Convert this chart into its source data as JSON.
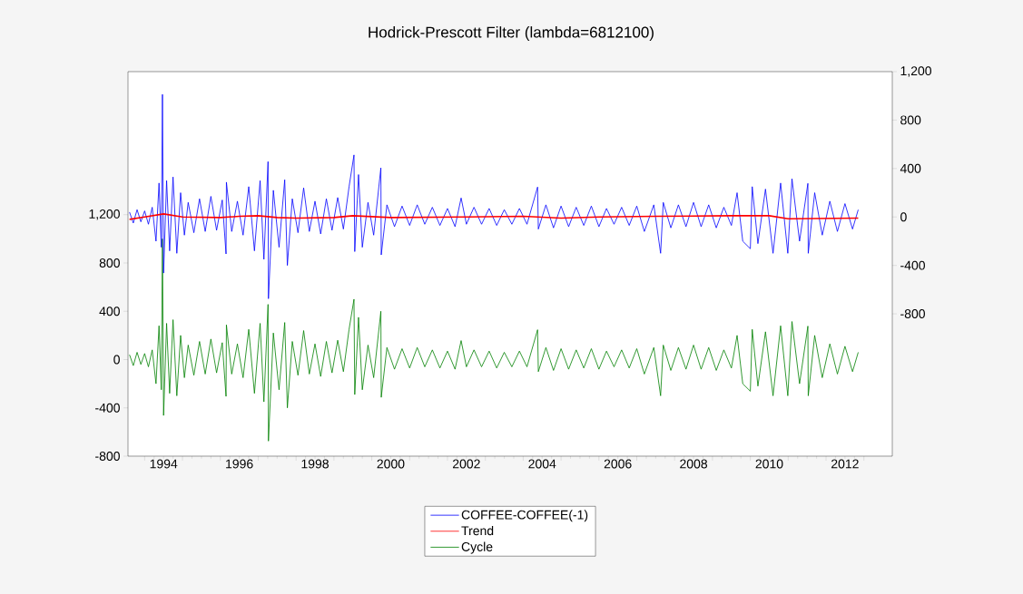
{
  "chart_data": {
    "type": "line",
    "title": "Hodrick-Prescott Filter (lambda=6812100)",
    "x": [
      1993.6,
      1993.7,
      1993.8,
      1993.9,
      1994.0,
      1994.1,
      1994.2,
      1994.3,
      1994.38,
      1994.44,
      1994.47,
      1994.5,
      1994.58,
      1994.66,
      1994.75,
      1994.85,
      1994.95,
      1995.05,
      1995.15,
      1995.3,
      1995.45,
      1995.6,
      1995.75,
      1995.9,
      1996.05,
      1996.15,
      1996.16,
      1996.3,
      1996.45,
      1996.6,
      1996.75,
      1996.9,
      1997.05,
      1997.15,
      1997.26,
      1997.27,
      1997.4,
      1997.55,
      1997.7,
      1997.77,
      1997.9,
      1998.05,
      1998.2,
      1998.35,
      1998.5,
      1998.65,
      1998.8,
      1998.95,
      1999.1,
      1999.25,
      1999.4,
      1999.53,
      1999.55,
      1999.65,
      1999.75,
      1999.9,
      2000.05,
      2000.24,
      2000.25,
      2000.4,
      2000.6,
      2000.8,
      2001.0,
      2001.2,
      2001.4,
      2001.6,
      2001.8,
      2002.0,
      2002.2,
      2002.36,
      2002.5,
      2002.7,
      2002.9,
      2003.1,
      2003.3,
      2003.5,
      2003.7,
      2003.9,
      2004.1,
      2004.38,
      2004.4,
      2004.6,
      2004.8,
      2005.0,
      2005.2,
      2005.4,
      2005.6,
      2005.8,
      2006.0,
      2006.2,
      2006.4,
      2006.6,
      2006.8,
      2007.0,
      2007.2,
      2007.45,
      2007.63,
      2007.7,
      2007.9,
      2008.1,
      2008.3,
      2008.5,
      2008.7,
      2008.9,
      2009.1,
      2009.3,
      2009.5,
      2009.65,
      2009.8,
      2010.0,
      2010.05,
      2010.2,
      2010.4,
      2010.6,
      2010.8,
      2010.99,
      2011.1,
      2011.3,
      2011.52,
      2011.53,
      2011.7,
      2011.9,
      2012.1,
      2012.3,
      2012.5,
      2012.7,
      2012.85
    ],
    "series": [
      {
        "name": "COFFEE-COFFEE(-1)",
        "color": "#0000ff",
        "axis": "y2",
        "values": [
          40,
          -50,
          60,
          -40,
          50,
          -60,
          80,
          -200,
          280,
          -250,
          1012,
          -463,
          300,
          -280,
          330,
          -300,
          200,
          -150,
          120,
          -130,
          150,
          -120,
          170,
          -110,
          140,
          -305,
          287,
          -120,
          130,
          -150,
          250,
          -280,
          300,
          -350,
          457,
          -675,
          220,
          -250,
          307,
          -400,
          150,
          -130,
          240,
          -120,
          130,
          -140,
          150,
          -110,
          160,
          -100,
          250,
          512,
          -286,
          350,
          -250,
          120,
          -150,
          405,
          -313,
          100,
          -80,
          90,
          -70,
          100,
          -60,
          80,
          -70,
          70,
          -80,
          157,
          -60,
          80,
          -60,
          70,
          -70,
          60,
          -60,
          70,
          -60,
          247,
          -100,
          100,
          -90,
          90,
          -80,
          80,
          -70,
          90,
          -80,
          70,
          -60,
          80,
          -70,
          90,
          -120,
          100,
          -300,
          120,
          -90,
          100,
          -80,
          120,
          -80,
          100,
          -90,
          80,
          -70,
          200,
          -200,
          -262,
          250,
          -220,
          230,
          -300,
          280,
          -300,
          315,
          -200,
          277,
          -300,
          200,
          -150,
          130,
          -120,
          110,
          -100,
          60
        ]
      },
      {
        "name": "Trend",
        "color": "#ff0000",
        "axis": "y2",
        "x": [
          1993.6,
          1994.0,
          1994.5,
          1995.0,
          1996.0,
          1996.5,
          1997.0,
          1997.5,
          1998.0,
          1999.0,
          1999.5,
          2000.5,
          2002.5,
          2004.0,
          2005.0,
          2006.0,
          2007.5,
          2009.5,
          2010.5,
          2011.0,
          2012.85
        ],
        "values": [
          -20,
          0,
          25,
          0,
          -5,
          5,
          10,
          -5,
          -10,
          -5,
          10,
          -5,
          0,
          5,
          -10,
          0,
          5,
          10,
          10,
          -15,
          -10
        ]
      },
      {
        "name": "Cycle",
        "color": "#008000",
        "axis": "y",
        "values": [
          40,
          -50,
          60,
          -40,
          50,
          -60,
          80,
          -200,
          280,
          -250,
          1000,
          -463,
          300,
          -280,
          330,
          -300,
          200,
          -150,
          120,
          -130,
          150,
          -120,
          170,
          -110,
          140,
          -305,
          287,
          -120,
          130,
          -150,
          250,
          -280,
          300,
          -350,
          457,
          -675,
          220,
          -250,
          307,
          -400,
          150,
          -130,
          240,
          -120,
          130,
          -140,
          150,
          -110,
          160,
          -100,
          250,
          500,
          -290,
          350,
          -250,
          120,
          -150,
          400,
          -313,
          100,
          -80,
          90,
          -70,
          100,
          -60,
          80,
          -70,
          70,
          -80,
          157,
          -60,
          80,
          -60,
          70,
          -70,
          60,
          -60,
          70,
          -60,
          247,
          -100,
          100,
          -90,
          90,
          -80,
          80,
          -70,
          90,
          -80,
          70,
          -60,
          80,
          -70,
          90,
          -120,
          100,
          -300,
          120,
          -90,
          100,
          -80,
          120,
          -80,
          100,
          -90,
          80,
          -70,
          200,
          -200,
          -262,
          250,
          -220,
          230,
          -300,
          280,
          -300,
          315,
          -200,
          277,
          -300,
          200,
          -150,
          130,
          -120,
          110,
          -100,
          60
        ]
      }
    ],
    "xlim": [
      1993.56,
      2013.75
    ],
    "xticks": [
      {
        "value": 1994,
        "label": null
      },
      {
        "value": 1994.5,
        "label": "1994"
      },
      {
        "value": 1995,
        "label": null
      },
      {
        "value": 1996,
        "label": null
      },
      {
        "value": 1996.5,
        "label": "1996"
      },
      {
        "value": 1997,
        "label": null
      },
      {
        "value": 1998,
        "label": null
      },
      {
        "value": 1998.5,
        "label": "1998"
      },
      {
        "value": 1999,
        "label": null
      },
      {
        "value": 2000,
        "label": null
      },
      {
        "value": 2000.5,
        "label": "2000"
      },
      {
        "value": 2001,
        "label": null
      },
      {
        "value": 2002,
        "label": null
      },
      {
        "value": 2002.5,
        "label": "2002"
      },
      {
        "value": 2003,
        "label": null
      },
      {
        "value": 2004,
        "label": null
      },
      {
        "value": 2004.5,
        "label": "2004"
      },
      {
        "value": 2005,
        "label": null
      },
      {
        "value": 2006,
        "label": null
      },
      {
        "value": 2006.5,
        "label": "2006"
      },
      {
        "value": 2007,
        "label": null
      },
      {
        "value": 2008,
        "label": null
      },
      {
        "value": 2008.5,
        "label": "2008"
      },
      {
        "value": 2009,
        "label": null
      },
      {
        "value": 2010,
        "label": null
      },
      {
        "value": 2010.5,
        "label": "2010"
      },
      {
        "value": 2011,
        "label": null
      },
      {
        "value": 2012,
        "label": null
      },
      {
        "value": 2012.5,
        "label": "2012"
      },
      {
        "value": 2013,
        "label": null
      }
    ],
    "ylim": [
      -800,
      2385
    ],
    "yticks": [
      -800,
      -400,
      0,
      400,
      800,
      {
        "value": 1200,
        "label": "1,200"
      }
    ],
    "y2lim": [
      -1975,
      1200
    ],
    "y2ticks": [
      -800,
      -400,
      0,
      400,
      800,
      {
        "value": 1200,
        "label": "1,200"
      }
    ],
    "legend": "bottom"
  }
}
